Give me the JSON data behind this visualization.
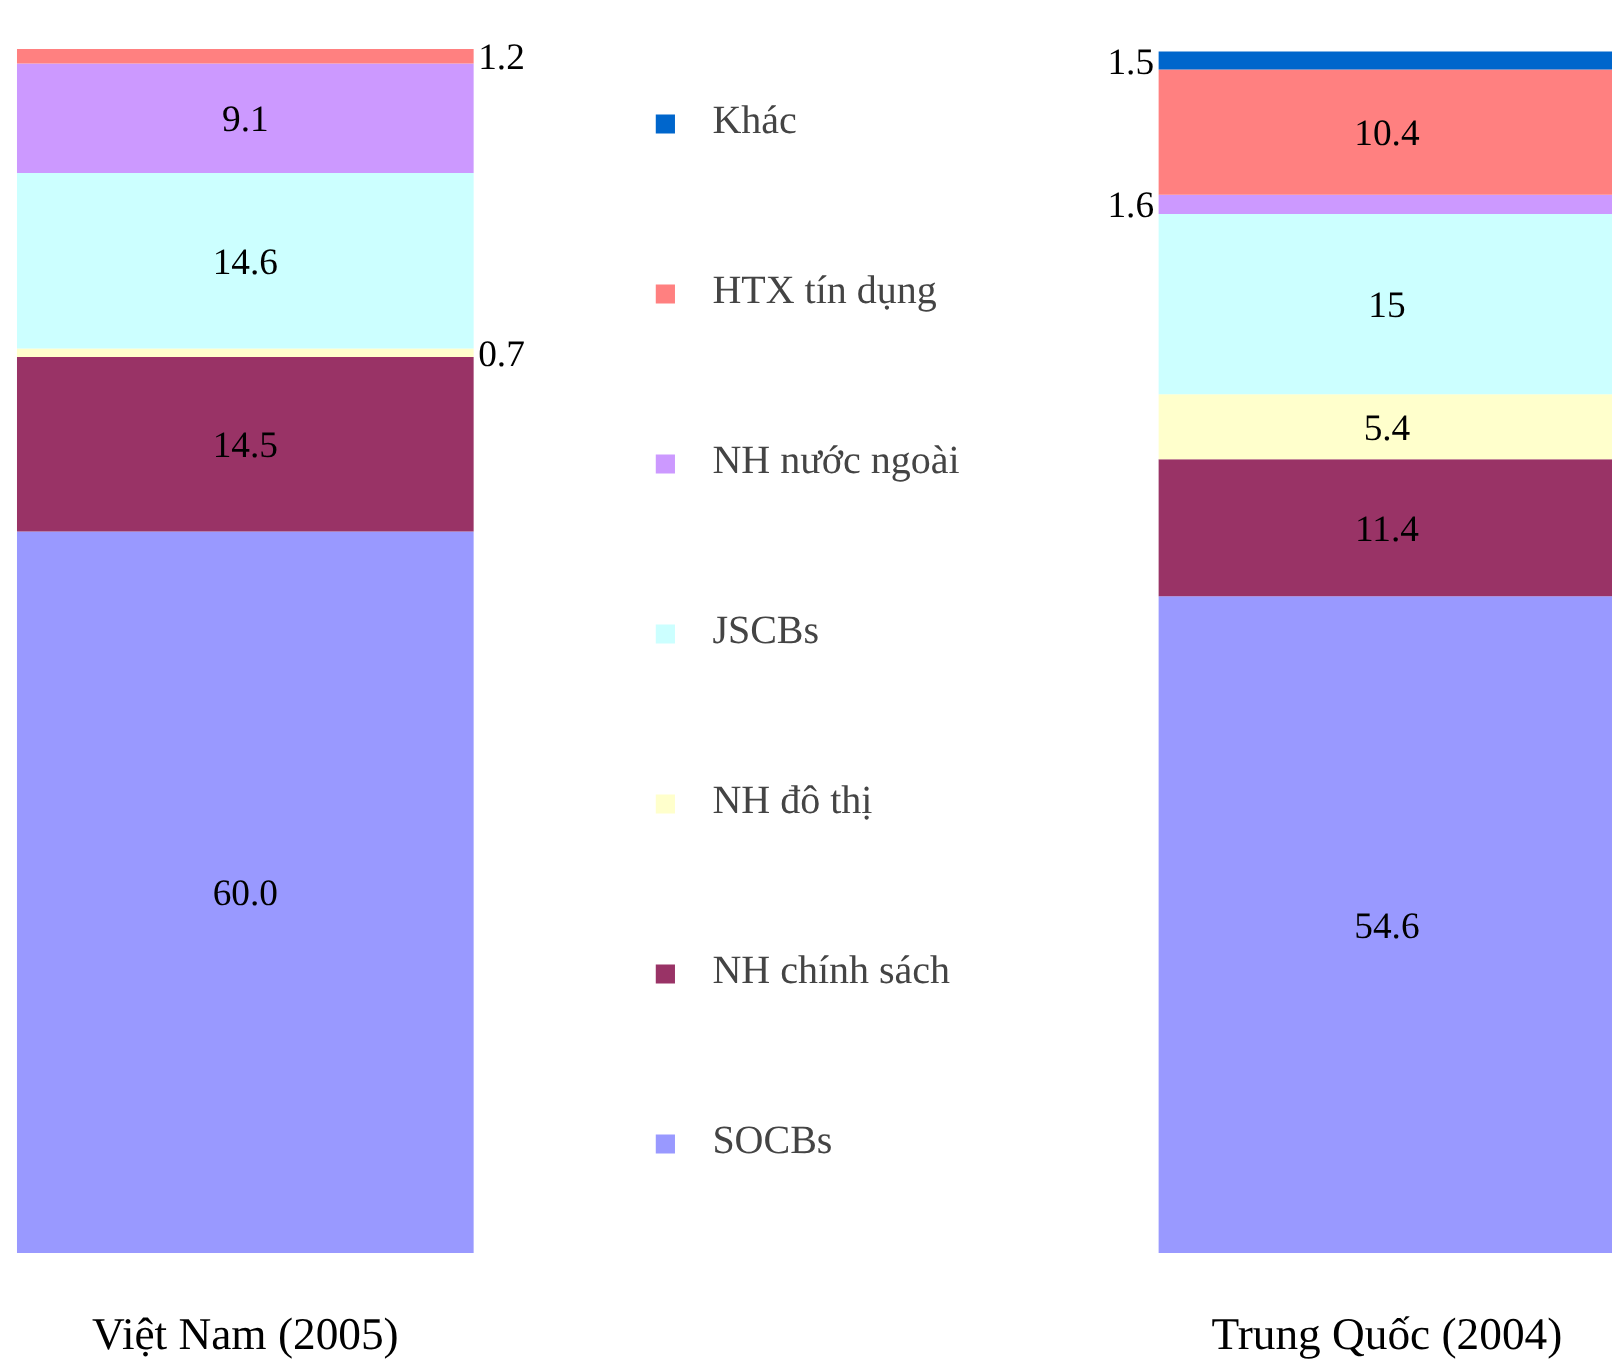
{
  "chart_data": {
    "type": "bar",
    "stacked": true,
    "categories": [
      "Việt Nam (2005)",
      "Trung Quốc (2004)"
    ],
    "data_labels": true,
    "legend": "center",
    "series": [
      {
        "name": "SOCBs",
        "color": "#9999ff",
        "values": [
          60.0,
          54.6
        ],
        "value_labels": [
          "60.0",
          "54.6"
        ]
      },
      {
        "name": "NH chính sách",
        "color": "#993366",
        "values": [
          14.5,
          11.4
        ],
        "value_labels": [
          "14.5",
          "11.4"
        ]
      },
      {
        "name": "NH đô thị",
        "color": "#ffffcc",
        "values": [
          0.7,
          5.4
        ],
        "value_labels": [
          "0.7",
          "5.4"
        ]
      },
      {
        "name": "JSCBs",
        "color": "#ccffff",
        "values": [
          14.6,
          15
        ],
        "value_labels": [
          "14.6",
          "15"
        ]
      },
      {
        "name": "NH nước ngoài",
        "color": "#cc99ff",
        "values": [
          9.1,
          1.6
        ],
        "value_labels": [
          "9.1",
          "1.6"
        ]
      },
      {
        "name": "HTX tín dụng",
        "color": "#ff8080",
        "values": [
          1.2,
          10.4
        ],
        "value_labels": [
          "1.2",
          "10.4"
        ]
      },
      {
        "name": "Khác",
        "color": "#0066cc",
        "values": [
          null,
          1.5
        ],
        "value_labels": [
          null,
          "1.5"
        ]
      }
    ]
  }
}
